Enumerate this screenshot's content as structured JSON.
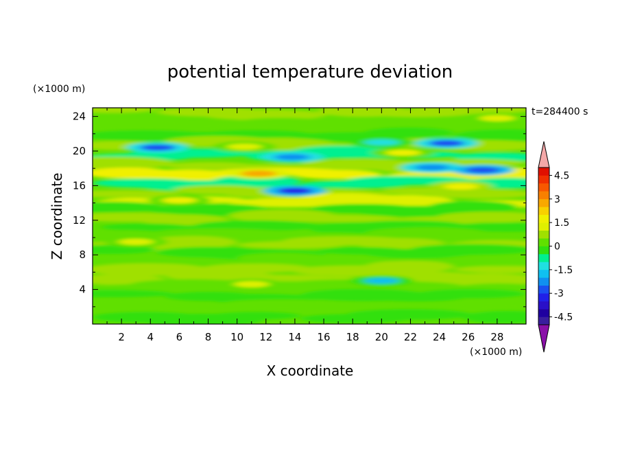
{
  "chart_data": {
    "type": "heatmap",
    "title": "potential temperature deviation",
    "xlabel": "X coordinate",
    "ylabel": "Z coordinate",
    "x_unit": "(×1000 m)",
    "y_unit": "(×1000 m)",
    "time_label": "t=284400 s",
    "xlim": [
      0,
      30
    ],
    "ylim": [
      0,
      25
    ],
    "x_ticks": [
      2,
      4,
      6,
      8,
      10,
      12,
      14,
      16,
      18,
      20,
      22,
      24,
      26,
      28
    ],
    "y_ticks": [
      4,
      8,
      12,
      16,
      20,
      24
    ],
    "colorbar": {
      "levels": [
        -5.0,
        -4.5,
        -4.0,
        -3.5,
        -3.0,
        -2.5,
        -2.0,
        -1.5,
        -1.0,
        -0.5,
        0.0,
        0.5,
        1.0,
        1.5,
        2.0,
        2.5,
        3.0,
        3.5,
        4.0,
        4.5,
        5.0
      ],
      "colors": [
        "#3a1e9e",
        "#1f00a0",
        "#2a10c8",
        "#2020e8",
        "#1a50f0",
        "#1090f0",
        "#10c0f0",
        "#20e0e0",
        "#00f090",
        "#30e010",
        "#60e000",
        "#a0e000",
        "#e0f000",
        "#f0f000",
        "#f8d000",
        "#f8a800",
        "#f88000",
        "#f85800",
        "#f03000",
        "#e01000"
      ],
      "under_color": "#8a10a8",
      "over_color": "#f4a8a8",
      "labels": [
        "4.5",
        "3",
        "1.5",
        "0",
        "-1.5",
        "-3",
        "-4.5"
      ]
    },
    "bands": [
      {
        "z": 24.5,
        "value": 0.6
      },
      {
        "z": 23.0,
        "value": 0.3
      },
      {
        "z": 21.8,
        "value": -0.4
      },
      {
        "z": 20.8,
        "value": 0.9
      },
      {
        "z": 19.6,
        "value": -0.9
      },
      {
        "z": 18.3,
        "value": 0.6
      },
      {
        "z": 17.3,
        "value": 1.6
      },
      {
        "z": 16.3,
        "value": -0.7
      },
      {
        "z": 15.2,
        "value": 0.8
      },
      {
        "z": 14.2,
        "value": 1.0
      },
      {
        "z": 13.2,
        "value": -0.3
      },
      {
        "z": 12.2,
        "value": 0.5
      },
      {
        "z": 11.2,
        "value": -0.4
      },
      {
        "z": 10.3,
        "value": 0.4
      },
      {
        "z": 9.3,
        "value": 0.6
      },
      {
        "z": 8.3,
        "value": -0.5
      },
      {
        "z": 7.3,
        "value": 0.3
      },
      {
        "z": 6.3,
        "value": 0.5
      },
      {
        "z": 5.3,
        "value": 0.7
      },
      {
        "z": 4.4,
        "value": 0.2
      },
      {
        "z": 3.2,
        "value": -0.4
      },
      {
        "z": 2.0,
        "value": 0.1
      },
      {
        "z": 0.8,
        "value": -0.3
      }
    ],
    "features": [
      {
        "x": 11.5,
        "z": 17.4,
        "value": 2.6
      },
      {
        "x": 14.0,
        "z": 15.4,
        "value": -3.2
      },
      {
        "x": 13.8,
        "z": 19.3,
        "value": -2.4
      },
      {
        "x": 4.5,
        "z": 20.4,
        "value": -2.6
      },
      {
        "x": 24.5,
        "z": 20.9,
        "value": -2.6
      },
      {
        "x": 23.5,
        "z": 18.1,
        "value": -2.4
      },
      {
        "x": 27.0,
        "z": 17.8,
        "value": -2.9
      },
      {
        "x": 21.5,
        "z": 19.8,
        "value": 1.6
      },
      {
        "x": 25.5,
        "z": 15.9,
        "value": 1.7
      },
      {
        "x": 10.5,
        "z": 20.5,
        "value": 1.4
      },
      {
        "x": 20.0,
        "z": 5.0,
        "value": -1.6
      },
      {
        "x": 11.0,
        "z": 4.6,
        "value": 1.2
      },
      {
        "x": 6.0,
        "z": 14.3,
        "value": 1.5
      },
      {
        "x": 3.0,
        "z": 9.5,
        "value": 1.1
      },
      {
        "x": 20.0,
        "z": 21.0,
        "value": -1.4
      },
      {
        "x": 28.0,
        "z": 23.8,
        "value": 1.2
      }
    ],
    "grid": false,
    "legend": "colorbar-right"
  }
}
